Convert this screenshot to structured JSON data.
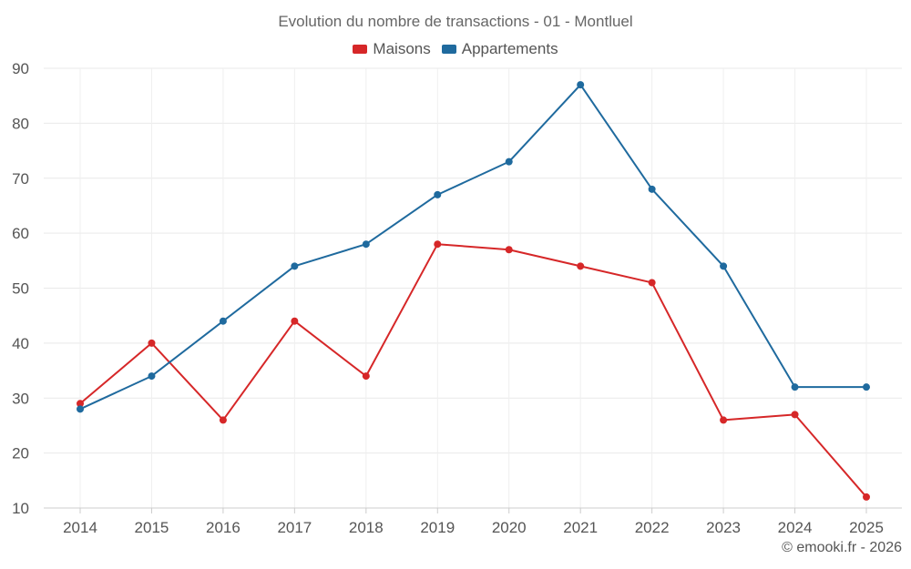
{
  "chart_data": {
    "type": "line",
    "title": "Evolution du nombre de transactions - 01 - Montluel",
    "categories": [
      "2014",
      "2015",
      "2016",
      "2017",
      "2018",
      "2019",
      "2020",
      "2021",
      "2022",
      "2023",
      "2024",
      "2025"
    ],
    "series": [
      {
        "name": "Maisons",
        "color": "#d62728",
        "values": [
          29,
          40,
          26,
          44,
          34,
          58,
          57,
          54,
          51,
          26,
          27,
          12
        ]
      },
      {
        "name": "Appartements",
        "color": "#1f6a9e",
        "values": [
          28,
          34,
          44,
          54,
          58,
          67,
          73,
          87,
          68,
          54,
          32,
          32
        ]
      }
    ],
    "ylim": [
      10,
      90
    ],
    "yticks": [
      10,
      20,
      30,
      40,
      50,
      60,
      70,
      80,
      90
    ],
    "xlabel": "",
    "ylabel": "",
    "grid": true,
    "legend_position": "top-center"
  },
  "credit": "© emooki.fr - 2026"
}
